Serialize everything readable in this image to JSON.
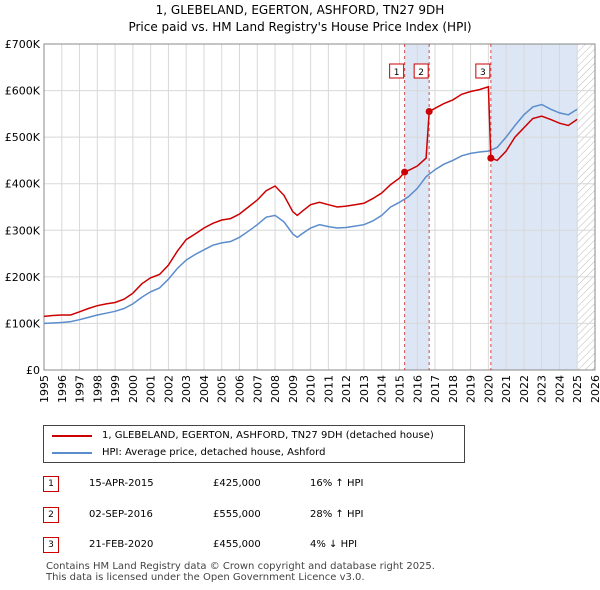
{
  "titles": {
    "line1": "1, GLEBELAND, EGERTON, ASHFORD, TN27 9DH",
    "line2": "Price paid vs. HM Land Registry's House Price Index (HPI)"
  },
  "colors": {
    "property": "#cc0000",
    "hpi": "#5b8ccc",
    "shade": "#dde6f5",
    "hatch": "#bbbbbb"
  },
  "chart_data": {
    "type": "line",
    "title": "Price paid vs. HM Land Registry's House Price Index (HPI)",
    "xlim": [
      1995,
      2026
    ],
    "ylim": [
      0,
      700000
    ],
    "x_ticks": [
      "1995",
      "1996",
      "1997",
      "1998",
      "1999",
      "2000",
      "2001",
      "2002",
      "2003",
      "2004",
      "2005",
      "2006",
      "2007",
      "2008",
      "2009",
      "2010",
      "2011",
      "2012",
      "2013",
      "2014",
      "2015",
      "2016",
      "2017",
      "2018",
      "2019",
      "2020",
      "2021",
      "2022",
      "2023",
      "2024",
      "2025",
      "2026"
    ],
    "y_ticks": [
      {
        "value": 0,
        "label": "£0"
      },
      {
        "value": 100000,
        "label": "£100K"
      },
      {
        "value": 200000,
        "label": "£200K"
      },
      {
        "value": 300000,
        "label": "£300K"
      },
      {
        "value": 400000,
        "label": "£400K"
      },
      {
        "value": 500000,
        "label": "£500K"
      },
      {
        "value": 600000,
        "label": "£600K"
      },
      {
        "value": 700000,
        "label": "£700K"
      }
    ],
    "series": [
      {
        "name": "1, GLEBELAND, EGERTON, ASHFORD, TN27 9DH (detached house)",
        "color": "#cc0000",
        "points": [
          [
            1995.0,
            115000
          ],
          [
            1995.5,
            117000
          ],
          [
            1996.0,
            118000
          ],
          [
            1996.5,
            118000
          ],
          [
            1997.0,
            125000
          ],
          [
            1997.5,
            132000
          ],
          [
            1998.0,
            138000
          ],
          [
            1998.5,
            142000
          ],
          [
            1999.0,
            145000
          ],
          [
            1999.5,
            152000
          ],
          [
            2000.0,
            165000
          ],
          [
            2000.5,
            185000
          ],
          [
            2001.0,
            198000
          ],
          [
            2001.5,
            205000
          ],
          [
            2002.0,
            225000
          ],
          [
            2002.5,
            255000
          ],
          [
            2003.0,
            280000
          ],
          [
            2003.5,
            292000
          ],
          [
            2004.0,
            305000
          ],
          [
            2004.5,
            315000
          ],
          [
            2005.0,
            322000
          ],
          [
            2005.5,
            325000
          ],
          [
            2006.0,
            335000
          ],
          [
            2006.5,
            350000
          ],
          [
            2007.0,
            365000
          ],
          [
            2007.5,
            385000
          ],
          [
            2008.0,
            395000
          ],
          [
            2008.5,
            375000
          ],
          [
            2009.0,
            340000
          ],
          [
            2009.25,
            332000
          ],
          [
            2009.5,
            340000
          ],
          [
            2010.0,
            355000
          ],
          [
            2010.5,
            360000
          ],
          [
            2011.0,
            355000
          ],
          [
            2011.5,
            350000
          ],
          [
            2012.0,
            352000
          ],
          [
            2012.5,
            355000
          ],
          [
            2013.0,
            358000
          ],
          [
            2013.5,
            368000
          ],
          [
            2014.0,
            380000
          ],
          [
            2014.5,
            398000
          ],
          [
            2015.0,
            412000
          ],
          [
            2015.29,
            425000
          ],
          [
            2015.6,
            430000
          ],
          [
            2016.0,
            438000
          ],
          [
            2016.5,
            455000
          ],
          [
            2016.67,
            555000
          ],
          [
            2017.0,
            562000
          ],
          [
            2017.5,
            572000
          ],
          [
            2018.0,
            580000
          ],
          [
            2018.5,
            592000
          ],
          [
            2019.0,
            598000
          ],
          [
            2019.5,
            602000
          ],
          [
            2020.0,
            608000
          ],
          [
            2020.14,
            455000
          ],
          [
            2020.5,
            450000
          ],
          [
            2021.0,
            470000
          ],
          [
            2021.5,
            500000
          ],
          [
            2022.0,
            520000
          ],
          [
            2022.5,
            540000
          ],
          [
            2023.0,
            545000
          ],
          [
            2023.5,
            538000
          ],
          [
            2024.0,
            530000
          ],
          [
            2024.5,
            525000
          ],
          [
            2025.0,
            538000
          ]
        ]
      },
      {
        "name": "HPI: Average price, detached house, Ashford",
        "color": "#5b8ccc",
        "points": [
          [
            1995.0,
            100000
          ],
          [
            1995.5,
            101000
          ],
          [
            1996.0,
            102000
          ],
          [
            1996.5,
            104000
          ],
          [
            1997.0,
            108000
          ],
          [
            1997.5,
            113000
          ],
          [
            1998.0,
            118000
          ],
          [
            1998.5,
            122000
          ],
          [
            1999.0,
            126000
          ],
          [
            1999.5,
            132000
          ],
          [
            2000.0,
            142000
          ],
          [
            2000.5,
            156000
          ],
          [
            2001.0,
            168000
          ],
          [
            2001.5,
            176000
          ],
          [
            2002.0,
            195000
          ],
          [
            2002.5,
            218000
          ],
          [
            2003.0,
            236000
          ],
          [
            2003.5,
            248000
          ],
          [
            2004.0,
            258000
          ],
          [
            2004.5,
            268000
          ],
          [
            2005.0,
            273000
          ],
          [
            2005.5,
            276000
          ],
          [
            2006.0,
            285000
          ],
          [
            2006.5,
            298000
          ],
          [
            2007.0,
            312000
          ],
          [
            2007.5,
            328000
          ],
          [
            2008.0,
            332000
          ],
          [
            2008.5,
            318000
          ],
          [
            2009.0,
            292000
          ],
          [
            2009.25,
            285000
          ],
          [
            2009.5,
            292000
          ],
          [
            2010.0,
            305000
          ],
          [
            2010.5,
            312000
          ],
          [
            2011.0,
            308000
          ],
          [
            2011.5,
            305000
          ],
          [
            2012.0,
            306000
          ],
          [
            2012.5,
            309000
          ],
          [
            2013.0,
            312000
          ],
          [
            2013.5,
            320000
          ],
          [
            2014.0,
            332000
          ],
          [
            2014.5,
            350000
          ],
          [
            2015.0,
            360000
          ],
          [
            2015.5,
            372000
          ],
          [
            2016.0,
            390000
          ],
          [
            2016.5,
            415000
          ],
          [
            2017.0,
            430000
          ],
          [
            2017.5,
            442000
          ],
          [
            2018.0,
            450000
          ],
          [
            2018.5,
            460000
          ],
          [
            2019.0,
            465000
          ],
          [
            2019.5,
            468000
          ],
          [
            2020.0,
            470000
          ],
          [
            2020.5,
            478000
          ],
          [
            2021.0,
            500000
          ],
          [
            2021.5,
            525000
          ],
          [
            2022.0,
            548000
          ],
          [
            2022.5,
            565000
          ],
          [
            2023.0,
            570000
          ],
          [
            2023.5,
            560000
          ],
          [
            2024.0,
            552000
          ],
          [
            2024.5,
            548000
          ],
          [
            2025.0,
            560000
          ]
        ]
      }
    ],
    "sale_markers": [
      {
        "num": "1",
        "x": 2015.29,
        "y": 425000
      },
      {
        "num": "2",
        "x": 2016.67,
        "y": 555000
      },
      {
        "num": "3",
        "x": 2020.14,
        "y": 455000
      }
    ],
    "shaded_regions": [
      [
        2015.29,
        2016.67
      ],
      [
        2020.14,
        2025.0
      ]
    ],
    "hatched_region": [
      2025.0,
      2026.0
    ],
    "legend_position": "below"
  },
  "legend": {
    "property_label": "1, GLEBELAND, EGERTON, ASHFORD, TN27 9DH (detached house)",
    "hpi_label": "HPI: Average price, detached house, Ashford"
  },
  "sales": [
    {
      "num": "1",
      "date": "15-APR-2015",
      "price": "£425,000",
      "hpi": "16% ↑ HPI"
    },
    {
      "num": "2",
      "date": "02-SEP-2016",
      "price": "£555,000",
      "hpi": "28% ↑ HPI"
    },
    {
      "num": "3",
      "date": "21-FEB-2020",
      "price": "£455,000",
      "hpi": "4% ↓ HPI"
    }
  ],
  "footer": {
    "line1": "Contains HM Land Registry data © Crown copyright and database right 2025.",
    "line2": "This data is licensed under the Open Government Licence v3.0."
  }
}
